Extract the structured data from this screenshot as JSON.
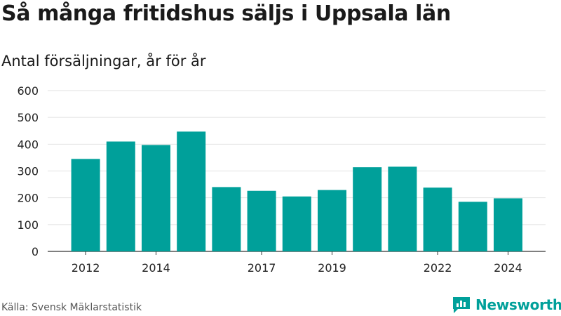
{
  "title": "Så många fritidshus säljs i Uppsala län",
  "subtitle": "Antal försäljningar, år för år",
  "source": "Källa: Svensk Mäklarstatistik",
  "brand": {
    "name": "Newsworthy",
    "icon": "newsworthy-logo-icon",
    "color": "#00a09a"
  },
  "chart_data": {
    "type": "bar",
    "title": "Så många fritidshus säljs i Uppsala län",
    "subtitle": "Antal försäljningar, år för år",
    "categories": [
      "2012",
      "2013",
      "2014",
      "2015",
      "2016",
      "2017",
      "2018",
      "2019",
      "2020",
      "2021",
      "2022",
      "2023",
      "2024"
    ],
    "values": [
      345,
      410,
      397,
      447,
      240,
      226,
      205,
      229,
      314,
      316,
      238,
      185,
      198
    ],
    "x_tick_labels": [
      "2012",
      "2014",
      "2017",
      "2019",
      "2022",
      "2024"
    ],
    "y_ticks": [
      0,
      100,
      200,
      300,
      400,
      500,
      600
    ],
    "ylim": [
      0,
      600
    ],
    "xlabel": "",
    "ylabel": "",
    "grid": true,
    "bar_color": "#00a09a"
  }
}
